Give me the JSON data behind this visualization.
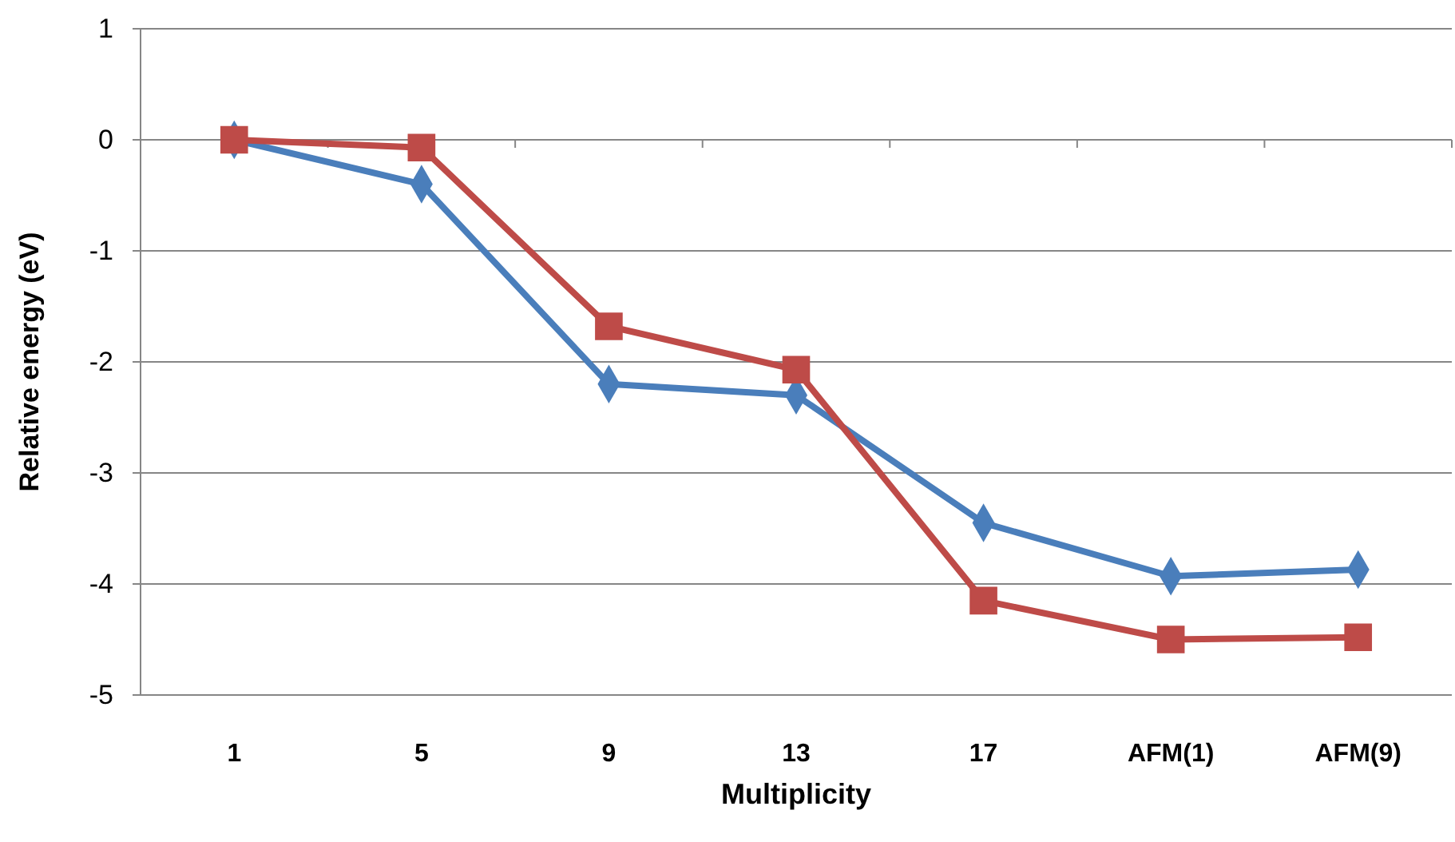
{
  "chart_data": {
    "type": "line",
    "xlabel": "Multiplicity",
    "ylabel": "Relative energy  (eV)",
    "categories": [
      "1",
      "5",
      "9",
      "13",
      "17",
      "AFM(1)",
      "AFM(9)"
    ],
    "series": [
      {
        "color": "#4a7ebb",
        "marker": "diamond",
        "values": [
          0,
          -0.4,
          -2.2,
          -2.3,
          -3.45,
          -3.93,
          -3.87
        ]
      },
      {
        "color": "#be4b48",
        "marker": "square",
        "values": [
          0,
          -0.07,
          -1.68,
          -2.07,
          -4.15,
          -4.5,
          -4.48
        ]
      }
    ],
    "ylim": [
      -5,
      1
    ],
    "yticks": [
      -5,
      -4,
      -3,
      -2,
      -1,
      0,
      1
    ],
    "grid": "y"
  }
}
